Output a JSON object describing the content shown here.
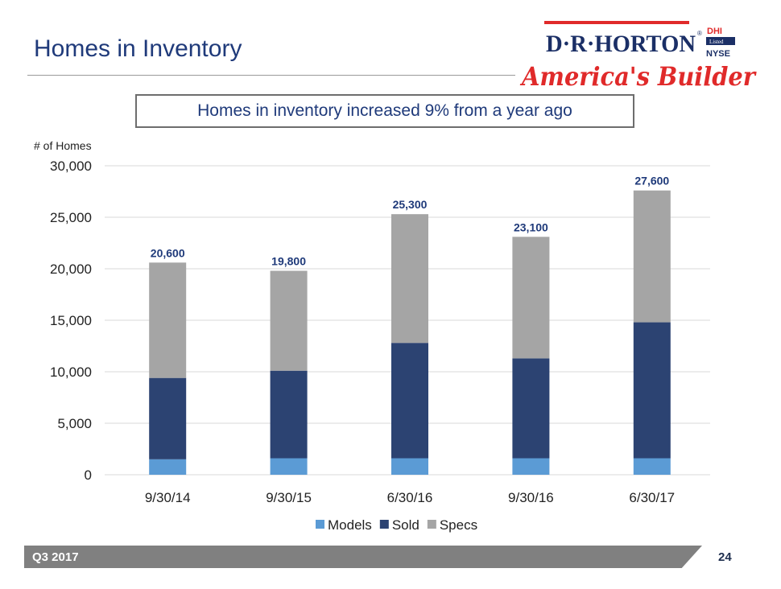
{
  "header": {
    "title": "Homes in Inventory"
  },
  "logo": {
    "brand": "D·R·HORTON",
    "tagline": "America's Builder",
    "ticker": "DHI",
    "listed": "Listed",
    "exchange": "NYSE"
  },
  "callout": "Homes in inventory increased 9% from a year ago",
  "footer": {
    "label": "Q3 2017",
    "page": "24"
  },
  "colors": {
    "models": "#5b9bd5",
    "sold": "#2c4372",
    "specs": "#a5a5a5",
    "title": "#1f3a7a"
  },
  "chart_data": {
    "type": "bar",
    "stacked": true,
    "ylabel": "# of Homes",
    "ylim": [
      0,
      30000
    ],
    "yticks": [
      0,
      5000,
      10000,
      15000,
      20000,
      25000,
      30000
    ],
    "ytick_labels": [
      "0",
      "5,000",
      "10,000",
      "15,000",
      "20,000",
      "25,000",
      "30,000"
    ],
    "grid": true,
    "legend": "bottom",
    "categories": [
      "9/30/14",
      "9/30/15",
      "6/30/16",
      "9/30/16",
      "6/30/17"
    ],
    "series": [
      {
        "name": "Models",
        "values": [
          1500,
          1600,
          1600,
          1600,
          1600
        ]
      },
      {
        "name": "Sold",
        "values": [
          7900,
          8500,
          11200,
          9700,
          13200
        ]
      },
      {
        "name": "Specs",
        "values": [
          11200,
          9700,
          12500,
          11800,
          12800
        ]
      }
    ],
    "totals": [
      20600,
      19800,
      25300,
      23100,
      27600
    ],
    "total_labels": [
      "20,600",
      "19,800",
      "25,300",
      "23,100",
      "27,600"
    ]
  }
}
